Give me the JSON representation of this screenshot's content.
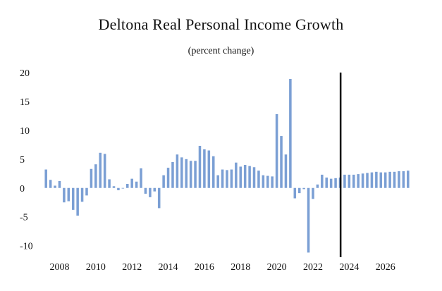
{
  "chart_data": {
    "type": "bar",
    "title": "Deltona Real Personal Income Growth",
    "subtitle": "(percent change)",
    "xlabel": "",
    "ylabel": "",
    "ylim": [
      -12,
      20
    ],
    "yticks": [
      20,
      15,
      10,
      5,
      0,
      -5,
      -10
    ],
    "xtick_labels": [
      "2008",
      "2010",
      "2012",
      "2014",
      "2016",
      "2018",
      "2020",
      "2022",
      "2024",
      "2026"
    ],
    "bar_color": "#7b9fd4",
    "forecast_line_color": "#000000",
    "forecast_start": "2023Q3",
    "categories": [
      "2007Q2",
      "2007Q3",
      "2007Q4",
      "2008Q1",
      "2008Q2",
      "2008Q3",
      "2008Q4",
      "2009Q1",
      "2009Q2",
      "2009Q3",
      "2009Q4",
      "2010Q1",
      "2010Q2",
      "2010Q3",
      "2010Q4",
      "2011Q1",
      "2011Q2",
      "2011Q3",
      "2011Q4",
      "2012Q1",
      "2012Q2",
      "2012Q3",
      "2012Q4",
      "2013Q1",
      "2013Q2",
      "2013Q3",
      "2013Q4",
      "2014Q1",
      "2014Q2",
      "2014Q3",
      "2014Q4",
      "2015Q1",
      "2015Q2",
      "2015Q3",
      "2015Q4",
      "2016Q1",
      "2016Q2",
      "2016Q3",
      "2016Q4",
      "2017Q1",
      "2017Q2",
      "2017Q3",
      "2017Q4",
      "2018Q1",
      "2018Q2",
      "2018Q3",
      "2018Q4",
      "2019Q1",
      "2019Q2",
      "2019Q3",
      "2019Q4",
      "2020Q1",
      "2020Q2",
      "2020Q3",
      "2020Q4",
      "2021Q1",
      "2021Q2",
      "2021Q3",
      "2021Q4",
      "2022Q1",
      "2022Q2",
      "2022Q3",
      "2022Q4",
      "2023Q1",
      "2023Q2",
      "2023Q3",
      "2023Q4",
      "2024Q1",
      "2024Q2",
      "2024Q3",
      "2024Q4",
      "2025Q1",
      "2025Q2",
      "2025Q3",
      "2025Q4",
      "2026Q1",
      "2026Q2",
      "2026Q3",
      "2026Q4",
      "2027Q1",
      "2027Q2"
    ],
    "values": [
      3.2,
      1.4,
      0.4,
      1.2,
      -2.5,
      -2.3,
      -3.8,
      -4.8,
      -2.4,
      -1.3,
      3.3,
      4.1,
      6.1,
      5.9,
      1.5,
      0.3,
      -0.4,
      -0.1,
      0.7,
      1.6,
      1.1,
      3.4,
      -1.0,
      -1.6,
      -0.6,
      -3.5,
      2.2,
      3.5,
      4.5,
      5.8,
      5.3,
      5.0,
      4.7,
      4.7,
      7.3,
      6.7,
      6.5,
      5.5,
      2.2,
      3.2,
      3.1,
      3.2,
      4.4,
      3.7,
      4.0,
      3.8,
      3.6,
      3.0,
      2.2,
      2.1,
      2.0,
      12.8,
      9.0,
      5.8,
      18.9,
      -1.8,
      -0.9,
      -0.2,
      -11.2,
      -1.9,
      0.6,
      2.3,
      1.8,
      1.6,
      1.7,
      1.8,
      2.3,
      2.3,
      2.3,
      2.4,
      2.5,
      2.6,
      2.7,
      2.8,
      2.7,
      2.7,
      2.8,
      2.8,
      2.9,
      2.9,
      3.0
    ],
    "grid": false,
    "legend": "none"
  }
}
